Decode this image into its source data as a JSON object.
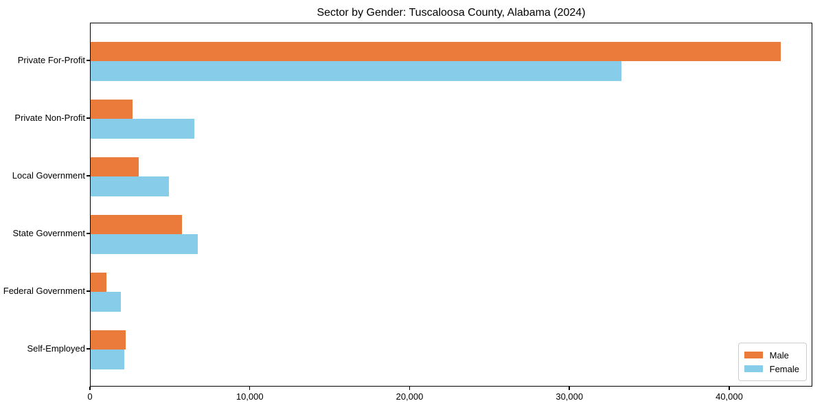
{
  "chart_data": {
    "type": "bar",
    "orientation": "horizontal",
    "title": "Sector by Gender: Tuscaloosa County, Alabama (2024)",
    "categories": [
      "Private For-Profit",
      "Private Non-Profit",
      "Local Government",
      "State Government",
      "Federal Government",
      "Self-Employed"
    ],
    "series": [
      {
        "name": "Male",
        "color": "#eb7b3b",
        "values": [
          43200,
          2600,
          3000,
          5700,
          1000,
          2200
        ]
      },
      {
        "name": "Female",
        "color": "#87cde9",
        "values": [
          33200,
          6500,
          4900,
          6700,
          1900,
          2100
        ]
      }
    ],
    "xlabel": "",
    "ylabel": "",
    "xlim": [
      0,
      45200
    ],
    "xticks": [
      0,
      10000,
      20000,
      30000,
      40000
    ],
    "xtick_labels": [
      "0",
      "10,000",
      "20,000",
      "30,000",
      "40,000"
    ],
    "grid": false,
    "legend_position": "lower right",
    "background_color": "#ffffff",
    "frame_color": "#000000"
  }
}
